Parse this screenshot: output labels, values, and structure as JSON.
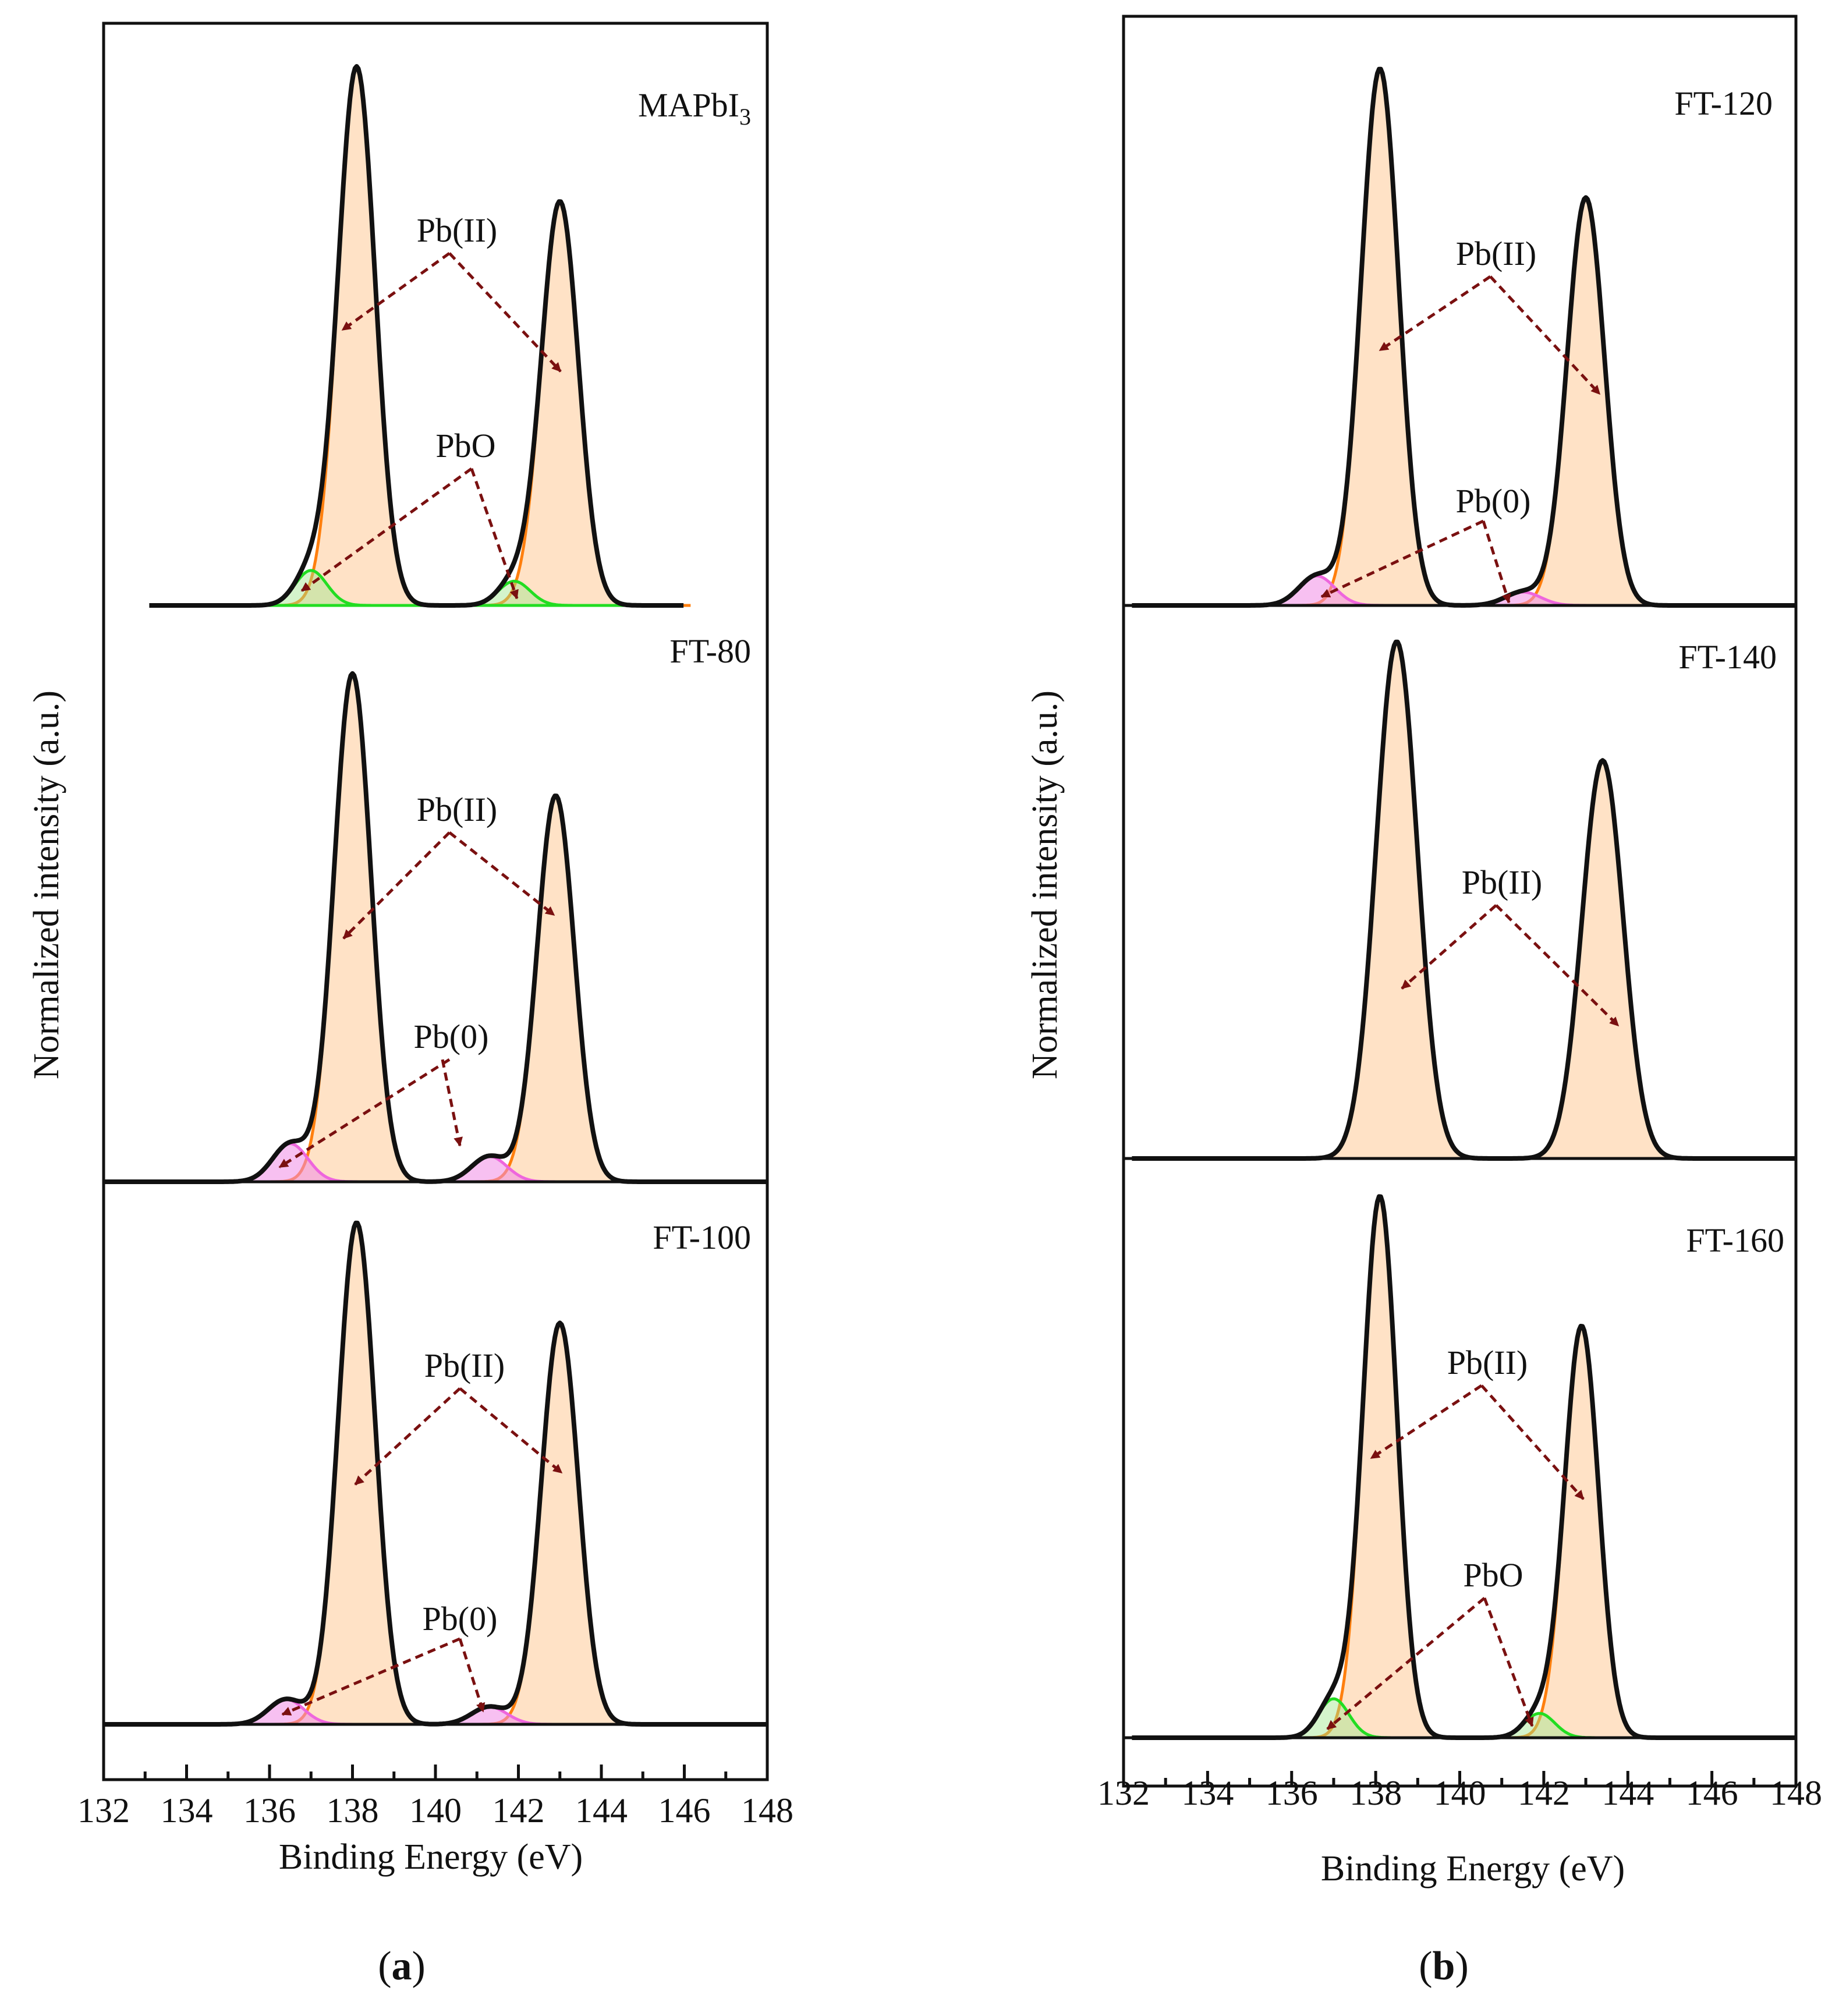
{
  "chart_data": [
    {
      "type": "line",
      "panel": "(a)",
      "title_letter": "a",
      "xlabel": "Binding Energy (eV)",
      "ylabel": "Normalized intensity (a.u.)",
      "xlim": [
        132,
        148
      ],
      "xticks": [
        "132",
        "134",
        "136",
        "138",
        "140",
        "142",
        "144",
        "146",
        "148"
      ],
      "grid": false,
      "subplots": [
        {
          "label": "MAPbI3",
          "label_main": "MAPbI",
          "label_sub": "3",
          "peaks": [
            {
              "name": "Pb(II) 4f7/2",
              "center": 138.1,
              "height": 1.0,
              "fwhm": 1.05,
              "color": "#ff7f0e"
            },
            {
              "name": "Pb(II) 4f5/2",
              "center": 143.0,
              "height": 0.75,
              "fwhm": 1.05,
              "color": "#ff7f0e"
            },
            {
              "name": "PbO 4f7/2",
              "center": 137.0,
              "height": 0.065,
              "fwhm": 0.9,
              "color": "#22dd22"
            },
            {
              "name": "PbO 4f5/2",
              "center": 141.9,
              "height": 0.045,
              "fwhm": 0.9,
              "color": "#22dd22"
            }
          ],
          "annotations": [
            {
              "text": "Pb(II)",
              "points_to": [
                [
                  138.0,
                  0.55
                ],
                [
                  142.9,
                  0.44
                ]
              ]
            },
            {
              "text": "PbO",
              "points_to": [
                [
                  136.8,
                  0.04
                ],
                [
                  141.8,
                  0.02
                ]
              ]
            }
          ]
        },
        {
          "label": "FT-80",
          "label_main": "FT-80",
          "label_sub": "",
          "peaks": [
            {
              "name": "Pb(II) 4f7/2",
              "center": 138.0,
              "height": 1.0,
              "fwhm": 1.05,
              "color": "#ff7f0e"
            },
            {
              "name": "Pb(II) 4f5/2",
              "center": 142.9,
              "height": 0.76,
              "fwhm": 1.05,
              "color": "#ff7f0e"
            },
            {
              "name": "Pb(0) 4f7/2",
              "center": 136.5,
              "height": 0.075,
              "fwhm": 1.0,
              "color": "#ee66dd"
            },
            {
              "name": "Pb(0) 4f5/2",
              "center": 141.3,
              "height": 0.05,
              "fwhm": 1.0,
              "color": "#ee66dd"
            }
          ],
          "annotations": [
            {
              "text": "Pb(II)",
              "points_to": [
                [
                  137.8,
                  0.5
                ],
                [
                  142.6,
                  0.58
                ]
              ]
            },
            {
              "text": "Pb(0)",
              "points_to": [
                [
                  136.6,
                  0.02
                ],
                [
                  140.9,
                  0.07
                ]
              ]
            }
          ]
        },
        {
          "label": "FT-100",
          "label_main": "FT-100",
          "label_sub": "",
          "peaks": [
            {
              "name": "Pb(II) 4f7/2",
              "center": 138.1,
              "height": 1.0,
              "fwhm": 1.05,
              "color": "#ff7f0e"
            },
            {
              "name": "Pb(II) 4f5/2",
              "center": 143.0,
              "height": 0.8,
              "fwhm": 1.05,
              "color": "#ff7f0e"
            },
            {
              "name": "Pb(0) 4f7/2",
              "center": 136.4,
              "height": 0.05,
              "fwhm": 1.0,
              "color": "#ee66dd"
            },
            {
              "name": "Pb(0) 4f5/2",
              "center": 141.3,
              "height": 0.035,
              "fwhm": 1.0,
              "color": "#ee66dd"
            }
          ],
          "annotations": [
            {
              "text": "Pb(II)",
              "points_to": [
                [
                  137.8,
                  0.48
                ],
                [
                  142.9,
                  0.5
                ]
              ]
            },
            {
              "text": "Pb(0)",
              "points_to": [
                [
                  136.6,
                  0.02
                ],
                [
                  141.2,
                  0.03
                ]
              ]
            }
          ]
        }
      ]
    },
    {
      "type": "line",
      "panel": "(b)",
      "title_letter": "b",
      "xlabel": "Binding Energy (eV)",
      "ylabel": "Normalized intensity (a.u.)",
      "xlim": [
        132,
        148
      ],
      "xticks": [
        "132",
        "134",
        "136",
        "138",
        "140",
        "142",
        "144",
        "146",
        "148"
      ],
      "grid": false,
      "subplots": [
        {
          "label": "FT-120",
          "label_main": "FT-120",
          "label_sub": "",
          "peaks": [
            {
              "name": "Pb(II) 4f7/2",
              "center": 138.1,
              "height": 1.0,
              "fwhm": 1.05,
              "color": "#ff7f0e"
            },
            {
              "name": "Pb(II) 4f5/2",
              "center": 143.0,
              "height": 0.76,
              "fwhm": 1.05,
              "color": "#ff7f0e"
            },
            {
              "name": "Pb(0) 4f7/2",
              "center": 136.6,
              "height": 0.055,
              "fwhm": 1.0,
              "color": "#ee66dd"
            },
            {
              "name": "Pb(0) 4f5/2",
              "center": 141.5,
              "height": 0.025,
              "fwhm": 1.0,
              "color": "#ee66dd"
            }
          ],
          "annotations": [
            {
              "text": "Pb(II)",
              "points_to": [
                [
                  138.0,
                  0.48
                ],
                [
                  143.0,
                  0.4
                ]
              ]
            },
            {
              "text": "Pb(0)",
              "points_to": [
                [
                  136.6,
                  0.02
                ],
                [
                  141.2,
                  0.0
                ]
              ]
            }
          ]
        },
        {
          "label": "FT-140",
          "label_main": "FT-140",
          "label_sub": "",
          "peaks": [
            {
              "name": "Pb(II) 4f7/2",
              "center": 138.5,
              "height": 1.0,
              "fwhm": 1.15,
              "color": "#ff7f0e"
            },
            {
              "name": "Pb(II) 4f5/2",
              "center": 143.4,
              "height": 0.77,
              "fwhm": 1.15,
              "color": "#ff7f0e"
            }
          ],
          "annotations": [
            {
              "text": "Pb(II)",
              "points_to": [
                [
                  138.3,
                  0.34
                ],
                [
                  143.4,
                  0.26
                ]
              ]
            }
          ]
        },
        {
          "label": "FT-160",
          "label_main": "FT-160",
          "label_sub": "",
          "peaks": [
            {
              "name": "Pb(II) 4f7/2",
              "center": 138.1,
              "height": 1.0,
              "fwhm": 0.95,
              "color": "#ff7f0e"
            },
            {
              "name": "Pb(II) 4f5/2",
              "center": 142.9,
              "height": 0.76,
              "fwhm": 0.95,
              "color": "#ff7f0e"
            },
            {
              "name": "PbO 4f7/2",
              "center": 137.0,
              "height": 0.072,
              "fwhm": 0.85,
              "color": "#22dd22"
            },
            {
              "name": "PbO 4f5/2",
              "center": 141.9,
              "height": 0.045,
              "fwhm": 0.85,
              "color": "#22dd22"
            }
          ],
          "annotations": [
            {
              "text": "Pb(II)",
              "points_to": [
                [
                  137.9,
                  0.5
                ],
                [
                  142.9,
                  0.48
                ]
              ]
            },
            {
              "text": "PbO",
              "points_to": [
                [
                  136.8,
                  0.02
                ],
                [
                  141.8,
                  0.0
                ]
              ]
            }
          ]
        }
      ]
    }
  ]
}
